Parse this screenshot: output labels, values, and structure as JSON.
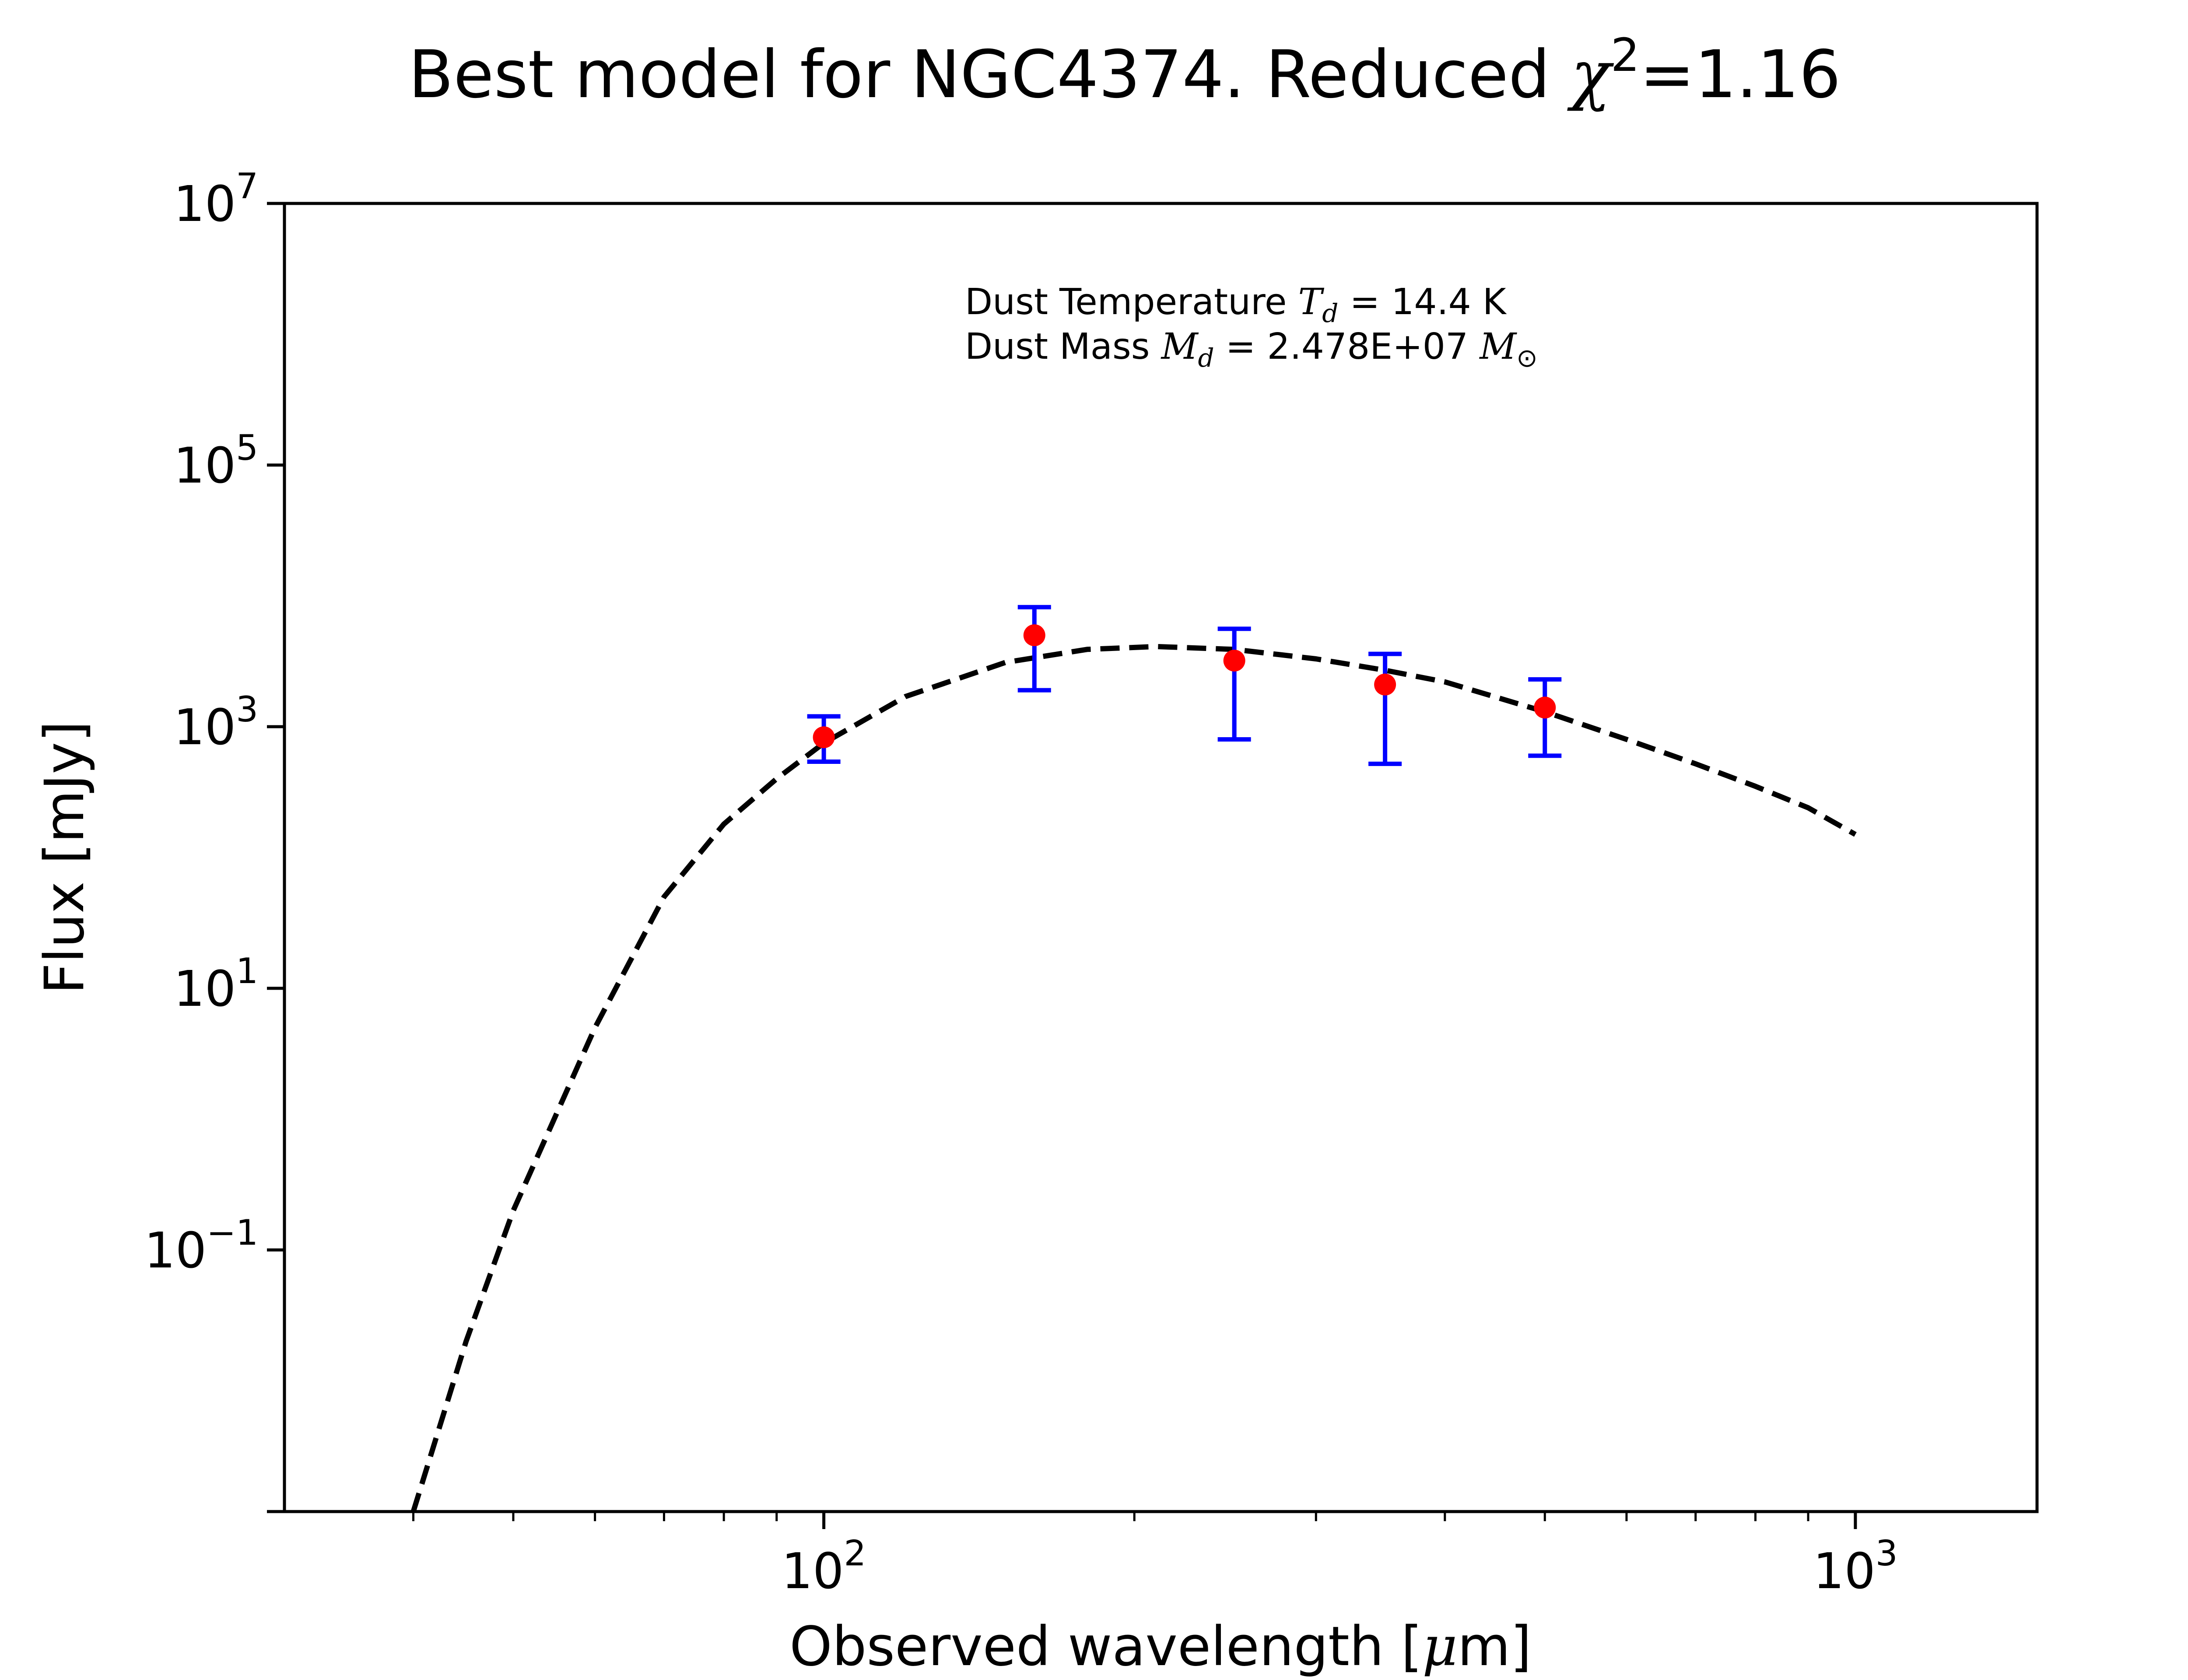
{
  "chart_data": {
    "type": "scatter",
    "title": "Best model for NGC4374. Reduced χ²=1.16",
    "title_parts": {
      "main": "Best model for NGC4374. Reduced ",
      "chi": "χ",
      "sup": "2",
      "value": "=1.16"
    },
    "xlabel": "Observed wavelength [μm]",
    "xlabel_parts": {
      "pre": "Observed wavelength [",
      "mu": "μ",
      "post": "m]"
    },
    "ylabel": "Flux [mJy]",
    "xscale": "log",
    "yscale": "log",
    "xlim": [
      30,
      1500
    ],
    "ylim": [
      0.001,
      10000000
    ],
    "x_ticks": [
      {
        "value": 100,
        "base": "10",
        "exp": "2"
      },
      {
        "value": 1000,
        "base": "10",
        "exp": "3"
      }
    ],
    "y_ticks": [
      {
        "value": 0.1,
        "base": "10",
        "exp": "−1"
      },
      {
        "value": 10,
        "base": "10",
        "exp": "1"
      },
      {
        "value": 1000,
        "base": "10",
        "exp": "3"
      },
      {
        "value": 100000,
        "base": "10",
        "exp": "5"
      },
      {
        "value": 10000000,
        "base": "10",
        "exp": "7"
      }
    ],
    "y_minor_ticks": [
      0.001
    ],
    "grid": false,
    "annotation": {
      "line1": {
        "pre": "Dust Temperature ",
        "sym": "T",
        "sub": "d",
        "post": " = 14.4 K"
      },
      "line2": {
        "pre": "Dust Mass ",
        "sym": "M",
        "sub": "d",
        "post": " = 2.478E+07 ",
        "unit": "M",
        "unit_sub": "⊙"
      }
    },
    "series": [
      {
        "kind": "data",
        "marker_color": "#ff0000",
        "errorbar_color": "#0000ff",
        "points": [
          {
            "x": 100,
            "y": 830,
            "ylow": 540,
            "yhigh": 1200
          },
          {
            "x": 160,
            "y": 5000,
            "ylow": 1900,
            "yhigh": 8200
          },
          {
            "x": 250,
            "y": 3200,
            "ylow": 800,
            "yhigh": 5600
          },
          {
            "x": 350,
            "y": 2100,
            "ylow": 520,
            "yhigh": 3600
          },
          {
            "x": 500,
            "y": 1400,
            "ylow": 600,
            "yhigh": 2300
          }
        ]
      },
      {
        "kind": "model",
        "line_color": "#000000",
        "line_style": "dashed",
        "points": [
          {
            "x": 40,
            "y": 0.001
          },
          {
            "x": 45,
            "y": 0.02
          },
          {
            "x": 50,
            "y": 0.2
          },
          {
            "x": 60,
            "y": 5
          },
          {
            "x": 70,
            "y": 50
          },
          {
            "x": 80,
            "y": 180
          },
          {
            "x": 90,
            "y": 400
          },
          {
            "x": 100,
            "y": 750
          },
          {
            "x": 120,
            "y": 1700
          },
          {
            "x": 150,
            "y": 3100
          },
          {
            "x": 180,
            "y": 3900
          },
          {
            "x": 210,
            "y": 4100
          },
          {
            "x": 250,
            "y": 3900
          },
          {
            "x": 300,
            "y": 3300
          },
          {
            "x": 350,
            "y": 2700
          },
          {
            "x": 400,
            "y": 2200
          },
          {
            "x": 500,
            "y": 1300
          },
          {
            "x": 600,
            "y": 800
          },
          {
            "x": 700,
            "y": 520
          },
          {
            "x": 800,
            "y": 350
          },
          {
            "x": 900,
            "y": 240
          },
          {
            "x": 1000,
            "y": 150
          }
        ]
      }
    ]
  }
}
